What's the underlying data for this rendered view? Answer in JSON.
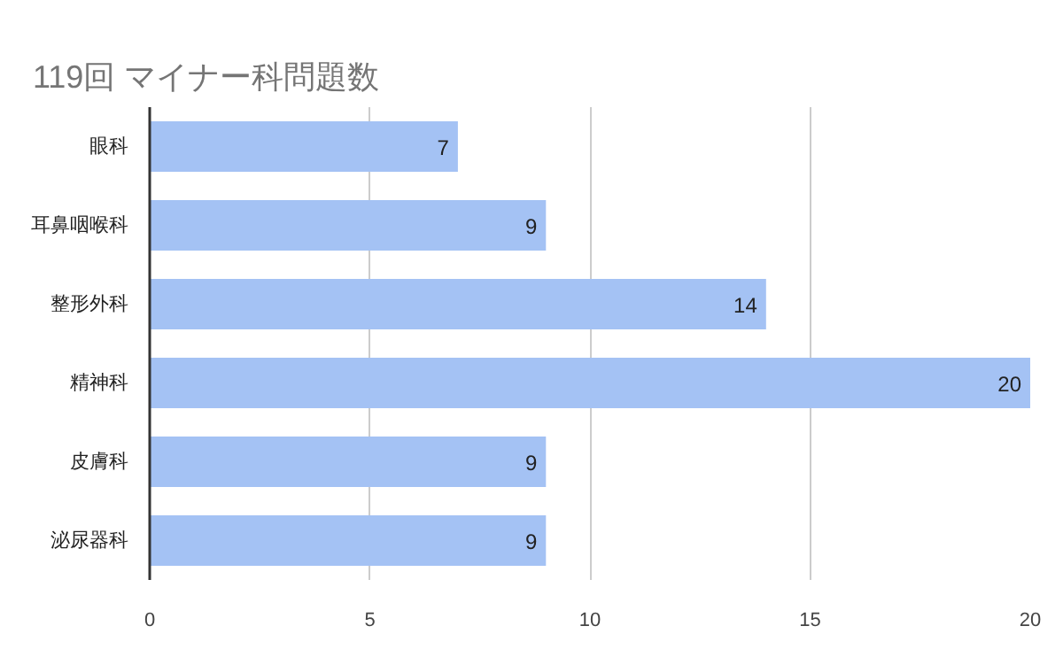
{
  "chart_data": {
    "type": "bar",
    "orientation": "horizontal",
    "title": "119回 マイナー科問題数",
    "categories": [
      "眼科",
      "耳鼻咽喉科",
      "整形外科",
      "精神科",
      "皮膚科",
      "泌尿器科"
    ],
    "values": [
      7,
      9,
      14,
      20,
      9,
      9
    ],
    "color": "#a4c2f4",
    "xlim": [
      0,
      20
    ],
    "xticks": [
      0,
      5,
      10,
      15,
      20
    ],
    "grid": "x",
    "data_labels": true
  }
}
